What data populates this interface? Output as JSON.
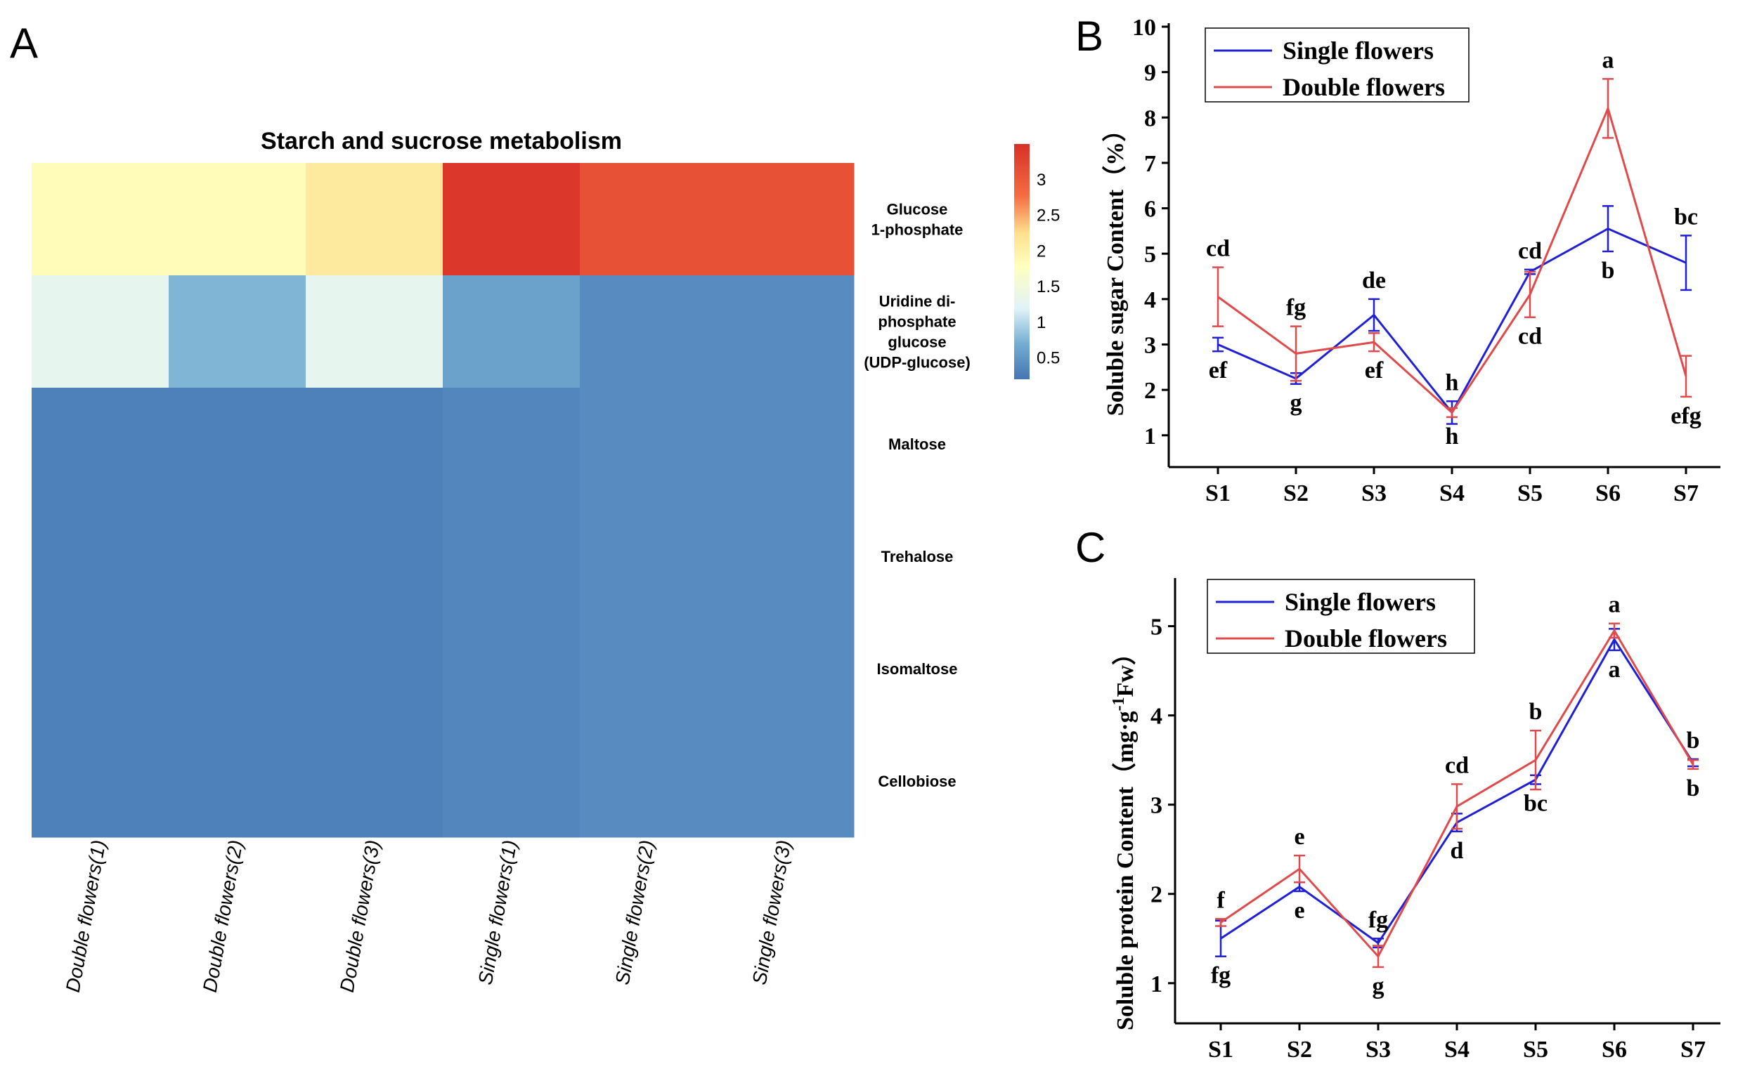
{
  "panels": {
    "a": "A",
    "b": "B",
    "c": "C"
  },
  "colors": {
    "single": "#1f1fd6",
    "double": "#e04a4a"
  },
  "chart_data": [
    {
      "type": "heatmap",
      "title": "Starch and sucrose metabolism",
      "rows": [
        "Glucose 1-phosphate",
        "Uridine di-phosphate glucose (UDP-glucose)",
        "Maltose",
        "Trehalose",
        "Isomaltose",
        "Cellobiose"
      ],
      "row_label_lines": [
        [
          "Glucose",
          "1-phosphate"
        ],
        [
          "Uridine di-",
          "phosphate",
          "glucose",
          "(UDP-glucose)"
        ],
        [
          "Maltose"
        ],
        [
          "Trehalose"
        ],
        [
          "Isomaltose"
        ],
        [
          "Cellobiose"
        ]
      ],
      "columns": [
        "Double flowers(1)",
        "Double flowers(2)",
        "Double flowers(3)",
        "Single flowers(1)",
        "Single flowers(2)",
        "Single flowers(3)"
      ],
      "values": [
        [
          1.85,
          1.85,
          2.1,
          3.4,
          3.1,
          3.1
        ],
        [
          1.3,
          0.75,
          1.3,
          0.6,
          0.4,
          0.4
        ],
        [
          0.3,
          0.3,
          0.3,
          0.35,
          0.4,
          0.4
        ],
        [
          0.3,
          0.3,
          0.3,
          0.35,
          0.4,
          0.4
        ],
        [
          0.3,
          0.3,
          0.3,
          0.35,
          0.4,
          0.4
        ],
        [
          0.3,
          0.3,
          0.3,
          0.35,
          0.4,
          0.4
        ]
      ],
      "colorbar": {
        "min": 0.2,
        "max": 3.5,
        "ticks": [
          "0.5",
          "1",
          "1.5",
          "2",
          "2.5",
          "3"
        ]
      }
    },
    {
      "type": "line",
      "ylabel": "Soluble sugar Content（%）",
      "categories": [
        "S1",
        "S2",
        "S3",
        "S4",
        "S5",
        "S6",
        "S7"
      ],
      "ylim": [
        0.3,
        10
      ],
      "yticks": [
        "1",
        "2",
        "3",
        "4",
        "5",
        "6",
        "7",
        "8",
        "9",
        "10"
      ],
      "legend_position": "top-left",
      "series": [
        {
          "name": "Single flowers",
          "values": [
            3.0,
            2.25,
            3.65,
            1.5,
            4.6,
            5.55,
            4.8
          ],
          "errors": [
            0.15,
            0.12,
            0.35,
            0.25,
            0.05,
            0.5,
            0.6
          ],
          "letters": [
            "ef",
            "g",
            "de",
            "h",
            "cd",
            "b",
            "bc"
          ]
        },
        {
          "name": "Double flowers",
          "values": [
            4.05,
            2.8,
            3.05,
            1.5,
            4.1,
            8.2,
            2.3
          ],
          "errors": [
            0.65,
            0.6,
            0.2,
            0.1,
            0.5,
            0.65,
            0.45
          ],
          "letters": [
            "cd",
            "fg",
            "ef",
            "h",
            "cd",
            "a",
            "efg"
          ]
        }
      ]
    },
    {
      "type": "line",
      "ylabel": "Soluble protein Content（mg·g-1Fw）",
      "ylabel_parts": [
        "Soluble protein Content（mg·g",
        "-1",
        "Fw）"
      ],
      "categories": [
        "S1",
        "S2",
        "S3",
        "S4",
        "S5",
        "S6",
        "S7"
      ],
      "ylim": [
        0.55,
        5.5
      ],
      "yticks": [
        "1",
        "2",
        "3",
        "4",
        "5"
      ],
      "legend_position": "top-left",
      "series": [
        {
          "name": "Single flowers",
          "values": [
            1.5,
            2.08,
            1.45,
            2.8,
            3.28,
            4.85,
            3.47
          ],
          "errors": [
            0.2,
            0.05,
            0.05,
            0.1,
            0.05,
            0.12,
            0.04
          ],
          "letters": [
            "fg",
            "e",
            "fg",
            "d",
            "bc",
            "a",
            "b"
          ]
        },
        {
          "name": "Double flowers",
          "values": [
            1.68,
            2.28,
            1.3,
            2.98,
            3.5,
            4.95,
            3.45
          ],
          "errors": [
            0.04,
            0.15,
            0.12,
            0.25,
            0.33,
            0.08,
            0.05
          ],
          "letters": [
            "f",
            "e",
            "g",
            "cd",
            "b",
            "a",
            "b"
          ]
        }
      ]
    }
  ]
}
